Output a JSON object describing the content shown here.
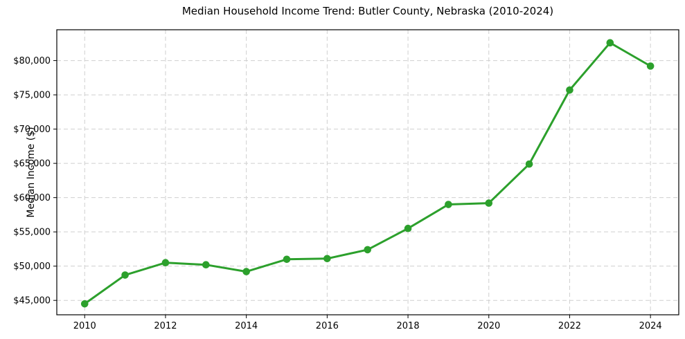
{
  "window": {
    "background_color": "#ffffff"
  },
  "chart_data": {
    "type": "line",
    "title": "Median Household Income Trend: Butler County, Nebraska (2010-2024)",
    "xlabel": "",
    "ylabel": "Median Income ($)",
    "x": [
      2010,
      2011,
      2012,
      2013,
      2014,
      2015,
      2016,
      2017,
      2018,
      2019,
      2020,
      2021,
      2022,
      2023,
      2024
    ],
    "series": [
      {
        "name": "Median household income",
        "values": [
          44500,
          48700,
          50500,
          50200,
          49200,
          51000,
          51100,
          52400,
          55500,
          59000,
          59200,
          64900,
          75700,
          82600,
          79200
        ],
        "color": "#2ca02c",
        "marker": "circle",
        "marker_radius": 5.3,
        "line_width": 3
      }
    ],
    "xlim": [
      2009.31,
      2024.7
    ],
    "ylim": [
      42900,
      84500
    ],
    "xticks": [
      2010,
      2012,
      2014,
      2016,
      2018,
      2020,
      2022,
      2024
    ],
    "xtick_labels": [
      "2010",
      "2012",
      "2014",
      "2016",
      "2018",
      "2020",
      "2022",
      "2024"
    ],
    "yticks": [
      45000,
      50000,
      55000,
      60000,
      65000,
      70000,
      75000,
      80000
    ],
    "ytick_labels": [
      "$45,000",
      "$50,000",
      "$55,000",
      "$60,000",
      "$65,000",
      "$70,000",
      "$75,000",
      "$80,000"
    ],
    "grid": true,
    "grid_color": "#cfcfcf",
    "grid_dash": "6 4",
    "frame_color": "#000000",
    "tick_color": "#000000",
    "legend": false
  }
}
